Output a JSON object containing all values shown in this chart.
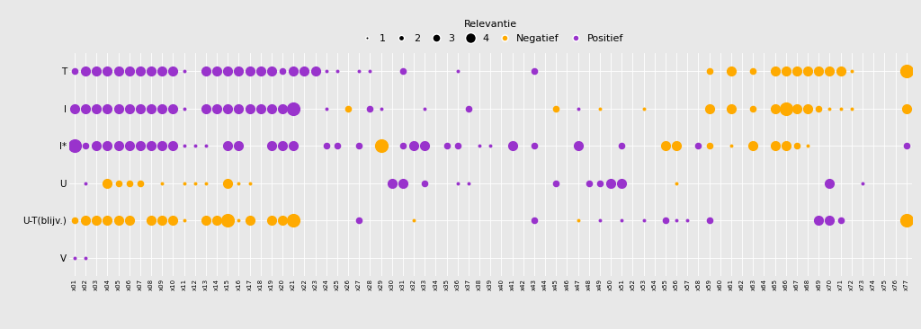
{
  "y_categories": [
    "T",
    "I",
    "I*",
    "U",
    "U-T(blijv.)",
    "V"
  ],
  "x_labels": [
    "x01",
    "x02",
    "x03",
    "x04",
    "x05",
    "x06",
    "x07",
    "x08",
    "x09",
    "x10",
    "x11",
    "x12",
    "x13",
    "x14",
    "x15",
    "x16",
    "x17",
    "x18",
    "x19",
    "x20",
    "x21",
    "x22",
    "x23",
    "x24",
    "x25",
    "x26",
    "x27",
    "x28",
    "x29",
    "x30",
    "x31",
    "x32",
    "x33",
    "x34",
    "x35",
    "x36",
    "x37",
    "x38",
    "x39",
    "x40",
    "x41",
    "x42",
    "x43",
    "x44",
    "x45",
    "x46",
    "x47",
    "x48",
    "x49",
    "x50",
    "x51",
    "x52",
    "x53",
    "x54",
    "x55",
    "x56",
    "x57",
    "x58",
    "x59",
    "x60",
    "x61",
    "x62",
    "x63",
    "x64",
    "x65",
    "x66",
    "x67",
    "x68",
    "x69",
    "x70",
    "x71",
    "x72",
    "x73",
    "x74",
    "x75",
    "x76",
    "x77"
  ],
  "purple": "#9933cc",
  "orange": "#ffaa00",
  "bg_color": "#e8e8e8",
  "grid_color": "#ffffff",
  "dots": [
    {
      "x": "x01",
      "y": "T",
      "color": "purple",
      "size": 2
    },
    {
      "x": "x02",
      "y": "T",
      "color": "purple",
      "size": 3
    },
    {
      "x": "x03",
      "y": "T",
      "color": "purple",
      "size": 3
    },
    {
      "x": "x04",
      "y": "T",
      "color": "purple",
      "size": 3
    },
    {
      "x": "x05",
      "y": "T",
      "color": "purple",
      "size": 3
    },
    {
      "x": "x06",
      "y": "T",
      "color": "purple",
      "size": 3
    },
    {
      "x": "x07",
      "y": "T",
      "color": "purple",
      "size": 3
    },
    {
      "x": "x08",
      "y": "T",
      "color": "purple",
      "size": 3
    },
    {
      "x": "x09",
      "y": "T",
      "color": "purple",
      "size": 3
    },
    {
      "x": "x10",
      "y": "T",
      "color": "purple",
      "size": 3
    },
    {
      "x": "x11",
      "y": "T",
      "color": "purple",
      "size": 1
    },
    {
      "x": "x13",
      "y": "T",
      "color": "purple",
      "size": 3
    },
    {
      "x": "x14",
      "y": "T",
      "color": "purple",
      "size": 3
    },
    {
      "x": "x15",
      "y": "T",
      "color": "purple",
      "size": 3
    },
    {
      "x": "x16",
      "y": "T",
      "color": "purple",
      "size": 3
    },
    {
      "x": "x17",
      "y": "T",
      "color": "purple",
      "size": 3
    },
    {
      "x": "x18",
      "y": "T",
      "color": "purple",
      "size": 3
    },
    {
      "x": "x19",
      "y": "T",
      "color": "purple",
      "size": 3
    },
    {
      "x": "x20",
      "y": "T",
      "color": "purple",
      "size": 2
    },
    {
      "x": "x21",
      "y": "T",
      "color": "purple",
      "size": 3
    },
    {
      "x": "x22",
      "y": "T",
      "color": "purple",
      "size": 3
    },
    {
      "x": "x23",
      "y": "T",
      "color": "purple",
      "size": 3
    },
    {
      "x": "x24",
      "y": "T",
      "color": "purple",
      "size": 1
    },
    {
      "x": "x25",
      "y": "T",
      "color": "purple",
      "size": 1
    },
    {
      "x": "x27",
      "y": "T",
      "color": "purple",
      "size": 1
    },
    {
      "x": "x28",
      "y": "T",
      "color": "purple",
      "size": 1
    },
    {
      "x": "x31",
      "y": "T",
      "color": "purple",
      "size": 2
    },
    {
      "x": "x36",
      "y": "T",
      "color": "purple",
      "size": 1
    },
    {
      "x": "x43",
      "y": "T",
      "color": "purple",
      "size": 2
    },
    {
      "x": "x59",
      "y": "T",
      "color": "orange",
      "size": 2
    },
    {
      "x": "x61",
      "y": "T",
      "color": "orange",
      "size": 3
    },
    {
      "x": "x63",
      "y": "T",
      "color": "orange",
      "size": 2
    },
    {
      "x": "x65",
      "y": "T",
      "color": "orange",
      "size": 3
    },
    {
      "x": "x66",
      "y": "T",
      "color": "orange",
      "size": 3
    },
    {
      "x": "x67",
      "y": "T",
      "color": "orange",
      "size": 3
    },
    {
      "x": "x68",
      "y": "T",
      "color": "orange",
      "size": 3
    },
    {
      "x": "x69",
      "y": "T",
      "color": "orange",
      "size": 3
    },
    {
      "x": "x70",
      "y": "T",
      "color": "orange",
      "size": 3
    },
    {
      "x": "x71",
      "y": "T",
      "color": "orange",
      "size": 3
    },
    {
      "x": "x72",
      "y": "T",
      "color": "orange",
      "size": 1
    },
    {
      "x": "x77",
      "y": "T",
      "color": "orange",
      "size": 4
    },
    {
      "x": "x01",
      "y": "I",
      "color": "purple",
      "size": 3
    },
    {
      "x": "x02",
      "y": "I",
      "color": "purple",
      "size": 3
    },
    {
      "x": "x03",
      "y": "I",
      "color": "purple",
      "size": 3
    },
    {
      "x": "x04",
      "y": "I",
      "color": "purple",
      "size": 3
    },
    {
      "x": "x05",
      "y": "I",
      "color": "purple",
      "size": 3
    },
    {
      "x": "x06",
      "y": "I",
      "color": "purple",
      "size": 3
    },
    {
      "x": "x07",
      "y": "I",
      "color": "purple",
      "size": 3
    },
    {
      "x": "x08",
      "y": "I",
      "color": "purple",
      "size": 3
    },
    {
      "x": "x09",
      "y": "I",
      "color": "purple",
      "size": 3
    },
    {
      "x": "x10",
      "y": "I",
      "color": "purple",
      "size": 3
    },
    {
      "x": "x11",
      "y": "I",
      "color": "purple",
      "size": 1
    },
    {
      "x": "x13",
      "y": "I",
      "color": "purple",
      "size": 3
    },
    {
      "x": "x14",
      "y": "I",
      "color": "purple",
      "size": 3
    },
    {
      "x": "x15",
      "y": "I",
      "color": "purple",
      "size": 3
    },
    {
      "x": "x16",
      "y": "I",
      "color": "purple",
      "size": 3
    },
    {
      "x": "x17",
      "y": "I",
      "color": "purple",
      "size": 3
    },
    {
      "x": "x18",
      "y": "I",
      "color": "purple",
      "size": 3
    },
    {
      "x": "x19",
      "y": "I",
      "color": "purple",
      "size": 3
    },
    {
      "x": "x20",
      "y": "I",
      "color": "purple",
      "size": 3
    },
    {
      "x": "x21",
      "y": "I",
      "color": "purple",
      "size": 4
    },
    {
      "x": "x24",
      "y": "I",
      "color": "purple",
      "size": 1
    },
    {
      "x": "x26",
      "y": "I",
      "color": "orange",
      "size": 2
    },
    {
      "x": "x28",
      "y": "I",
      "color": "purple",
      "size": 2
    },
    {
      "x": "x29",
      "y": "I",
      "color": "purple",
      "size": 1
    },
    {
      "x": "x33",
      "y": "I",
      "color": "purple",
      "size": 1
    },
    {
      "x": "x37",
      "y": "I",
      "color": "purple",
      "size": 2
    },
    {
      "x": "x45",
      "y": "I",
      "color": "orange",
      "size": 2
    },
    {
      "x": "x47",
      "y": "I",
      "color": "purple",
      "size": 1
    },
    {
      "x": "x49",
      "y": "I",
      "color": "orange",
      "size": 1
    },
    {
      "x": "x53",
      "y": "I",
      "color": "orange",
      "size": 1
    },
    {
      "x": "x59",
      "y": "I",
      "color": "orange",
      "size": 3
    },
    {
      "x": "x61",
      "y": "I",
      "color": "orange",
      "size": 3
    },
    {
      "x": "x63",
      "y": "I",
      "color": "orange",
      "size": 2
    },
    {
      "x": "x65",
      "y": "I",
      "color": "orange",
      "size": 3
    },
    {
      "x": "x66",
      "y": "I",
      "color": "orange",
      "size": 4
    },
    {
      "x": "x67",
      "y": "I",
      "color": "orange",
      "size": 3
    },
    {
      "x": "x68",
      "y": "I",
      "color": "orange",
      "size": 3
    },
    {
      "x": "x69",
      "y": "I",
      "color": "orange",
      "size": 2
    },
    {
      "x": "x70",
      "y": "I",
      "color": "orange",
      "size": 1
    },
    {
      "x": "x71",
      "y": "I",
      "color": "orange",
      "size": 1
    },
    {
      "x": "x72",
      "y": "I",
      "color": "orange",
      "size": 1
    },
    {
      "x": "x77",
      "y": "I",
      "color": "orange",
      "size": 3
    },
    {
      "x": "x01",
      "y": "I*",
      "color": "purple",
      "size": 4
    },
    {
      "x": "x02",
      "y": "I*",
      "color": "purple",
      "size": 2
    },
    {
      "x": "x03",
      "y": "I*",
      "color": "purple",
      "size": 3
    },
    {
      "x": "x04",
      "y": "I*",
      "color": "purple",
      "size": 3
    },
    {
      "x": "x05",
      "y": "I*",
      "color": "purple",
      "size": 3
    },
    {
      "x": "x06",
      "y": "I*",
      "color": "purple",
      "size": 3
    },
    {
      "x": "x07",
      "y": "I*",
      "color": "purple",
      "size": 3
    },
    {
      "x": "x08",
      "y": "I*",
      "color": "purple",
      "size": 3
    },
    {
      "x": "x09",
      "y": "I*",
      "color": "purple",
      "size": 3
    },
    {
      "x": "x10",
      "y": "I*",
      "color": "purple",
      "size": 3
    },
    {
      "x": "x11",
      "y": "I*",
      "color": "purple",
      "size": 1
    },
    {
      "x": "x12",
      "y": "I*",
      "color": "purple",
      "size": 1
    },
    {
      "x": "x13",
      "y": "I*",
      "color": "purple",
      "size": 1
    },
    {
      "x": "x15",
      "y": "I*",
      "color": "purple",
      "size": 3
    },
    {
      "x": "x16",
      "y": "I*",
      "color": "purple",
      "size": 3
    },
    {
      "x": "x19",
      "y": "I*",
      "color": "purple",
      "size": 3
    },
    {
      "x": "x20",
      "y": "I*",
      "color": "purple",
      "size": 3
    },
    {
      "x": "x21",
      "y": "I*",
      "color": "purple",
      "size": 3
    },
    {
      "x": "x24",
      "y": "I*",
      "color": "purple",
      "size": 2
    },
    {
      "x": "x25",
      "y": "I*",
      "color": "purple",
      "size": 2
    },
    {
      "x": "x27",
      "y": "I*",
      "color": "purple",
      "size": 2
    },
    {
      "x": "x29",
      "y": "I*",
      "color": "orange",
      "size": 4
    },
    {
      "x": "x31",
      "y": "I*",
      "color": "purple",
      "size": 2
    },
    {
      "x": "x32",
      "y": "I*",
      "color": "purple",
      "size": 3
    },
    {
      "x": "x33",
      "y": "I*",
      "color": "purple",
      "size": 3
    },
    {
      "x": "x35",
      "y": "I*",
      "color": "purple",
      "size": 2
    },
    {
      "x": "x36",
      "y": "I*",
      "color": "purple",
      "size": 2
    },
    {
      "x": "x38",
      "y": "I*",
      "color": "purple",
      "size": 1
    },
    {
      "x": "x39",
      "y": "I*",
      "color": "purple",
      "size": 1
    },
    {
      "x": "x41",
      "y": "I*",
      "color": "purple",
      "size": 3
    },
    {
      "x": "x43",
      "y": "I*",
      "color": "purple",
      "size": 2
    },
    {
      "x": "x47",
      "y": "I*",
      "color": "purple",
      "size": 3
    },
    {
      "x": "x51",
      "y": "I*",
      "color": "purple",
      "size": 2
    },
    {
      "x": "x55",
      "y": "I*",
      "color": "orange",
      "size": 3
    },
    {
      "x": "x56",
      "y": "I*",
      "color": "orange",
      "size": 3
    },
    {
      "x": "x58",
      "y": "I*",
      "color": "purple",
      "size": 2
    },
    {
      "x": "x59",
      "y": "I*",
      "color": "orange",
      "size": 2
    },
    {
      "x": "x61",
      "y": "I*",
      "color": "orange",
      "size": 1
    },
    {
      "x": "x63",
      "y": "I*",
      "color": "orange",
      "size": 3
    },
    {
      "x": "x65",
      "y": "I*",
      "color": "orange",
      "size": 3
    },
    {
      "x": "x66",
      "y": "I*",
      "color": "orange",
      "size": 3
    },
    {
      "x": "x67",
      "y": "I*",
      "color": "orange",
      "size": 2
    },
    {
      "x": "x68",
      "y": "I*",
      "color": "orange",
      "size": 1
    },
    {
      "x": "x77",
      "y": "I*",
      "color": "purple",
      "size": 2
    },
    {
      "x": "x02",
      "y": "U",
      "color": "purple",
      "size": 1
    },
    {
      "x": "x04",
      "y": "U",
      "color": "orange",
      "size": 3
    },
    {
      "x": "x05",
      "y": "U",
      "color": "orange",
      "size": 2
    },
    {
      "x": "x06",
      "y": "U",
      "color": "orange",
      "size": 2
    },
    {
      "x": "x07",
      "y": "U",
      "color": "orange",
      "size": 2
    },
    {
      "x": "x09",
      "y": "U",
      "color": "orange",
      "size": 1
    },
    {
      "x": "x11",
      "y": "U",
      "color": "orange",
      "size": 1
    },
    {
      "x": "x12",
      "y": "U",
      "color": "orange",
      "size": 1
    },
    {
      "x": "x13",
      "y": "U",
      "color": "orange",
      "size": 1
    },
    {
      "x": "x15",
      "y": "U",
      "color": "orange",
      "size": 3
    },
    {
      "x": "x16",
      "y": "U",
      "color": "orange",
      "size": 1
    },
    {
      "x": "x17",
      "y": "U",
      "color": "orange",
      "size": 1
    },
    {
      "x": "x30",
      "y": "U",
      "color": "purple",
      "size": 3
    },
    {
      "x": "x31",
      "y": "U",
      "color": "purple",
      "size": 3
    },
    {
      "x": "x33",
      "y": "U",
      "color": "purple",
      "size": 2
    },
    {
      "x": "x36",
      "y": "U",
      "color": "purple",
      "size": 1
    },
    {
      "x": "x37",
      "y": "U",
      "color": "purple",
      "size": 1
    },
    {
      "x": "x45",
      "y": "U",
      "color": "purple",
      "size": 2
    },
    {
      "x": "x48",
      "y": "U",
      "color": "purple",
      "size": 2
    },
    {
      "x": "x49",
      "y": "U",
      "color": "purple",
      "size": 2
    },
    {
      "x": "x50",
      "y": "U",
      "color": "purple",
      "size": 3
    },
    {
      "x": "x51",
      "y": "U",
      "color": "purple",
      "size": 3
    },
    {
      "x": "x56",
      "y": "U",
      "color": "orange",
      "size": 1
    },
    {
      "x": "x70",
      "y": "U",
      "color": "purple",
      "size": 3
    },
    {
      "x": "x73",
      "y": "U",
      "color": "purple",
      "size": 1
    },
    {
      "x": "x01",
      "y": "U-T(blijv.)",
      "color": "orange",
      "size": 2
    },
    {
      "x": "x02",
      "y": "U-T(blijv.)",
      "color": "orange",
      "size": 3
    },
    {
      "x": "x03",
      "y": "U-T(blijv.)",
      "color": "orange",
      "size": 3
    },
    {
      "x": "x04",
      "y": "U-T(blijv.)",
      "color": "orange",
      "size": 3
    },
    {
      "x": "x05",
      "y": "U-T(blijv.)",
      "color": "orange",
      "size": 3
    },
    {
      "x": "x06",
      "y": "U-T(blijv.)",
      "color": "orange",
      "size": 3
    },
    {
      "x": "x08",
      "y": "U-T(blijv.)",
      "color": "orange",
      "size": 3
    },
    {
      "x": "x09",
      "y": "U-T(blijv.)",
      "color": "orange",
      "size": 3
    },
    {
      "x": "x10",
      "y": "U-T(blijv.)",
      "color": "orange",
      "size": 3
    },
    {
      "x": "x11",
      "y": "U-T(blijv.)",
      "color": "orange",
      "size": 1
    },
    {
      "x": "x13",
      "y": "U-T(blijv.)",
      "color": "orange",
      "size": 3
    },
    {
      "x": "x14",
      "y": "U-T(blijv.)",
      "color": "orange",
      "size": 3
    },
    {
      "x": "x15",
      "y": "U-T(blijv.)",
      "color": "orange",
      "size": 4
    },
    {
      "x": "x16",
      "y": "U-T(blijv.)",
      "color": "orange",
      "size": 1
    },
    {
      "x": "x17",
      "y": "U-T(blijv.)",
      "color": "orange",
      "size": 3
    },
    {
      "x": "x19",
      "y": "U-T(blijv.)",
      "color": "orange",
      "size": 3
    },
    {
      "x": "x20",
      "y": "U-T(blijv.)",
      "color": "orange",
      "size": 3
    },
    {
      "x": "x21",
      "y": "U-T(blijv.)",
      "color": "orange",
      "size": 4
    },
    {
      "x": "x27",
      "y": "U-T(blijv.)",
      "color": "purple",
      "size": 2
    },
    {
      "x": "x32",
      "y": "U-T(blijv.)",
      "color": "orange",
      "size": 1
    },
    {
      "x": "x43",
      "y": "U-T(blijv.)",
      "color": "purple",
      "size": 2
    },
    {
      "x": "x47",
      "y": "U-T(blijv.)",
      "color": "orange",
      "size": 1
    },
    {
      "x": "x49",
      "y": "U-T(blijv.)",
      "color": "purple",
      "size": 1
    },
    {
      "x": "x51",
      "y": "U-T(blijv.)",
      "color": "purple",
      "size": 1
    },
    {
      "x": "x53",
      "y": "U-T(blijv.)",
      "color": "purple",
      "size": 1
    },
    {
      "x": "x55",
      "y": "U-T(blijv.)",
      "color": "purple",
      "size": 2
    },
    {
      "x": "x56",
      "y": "U-T(blijv.)",
      "color": "purple",
      "size": 1
    },
    {
      "x": "x57",
      "y": "U-T(blijv.)",
      "color": "purple",
      "size": 1
    },
    {
      "x": "x59",
      "y": "U-T(blijv.)",
      "color": "purple",
      "size": 2
    },
    {
      "x": "x69",
      "y": "U-T(blijv.)",
      "color": "purple",
      "size": 3
    },
    {
      "x": "x70",
      "y": "U-T(blijv.)",
      "color": "purple",
      "size": 3
    },
    {
      "x": "x71",
      "y": "U-T(blijv.)",
      "color": "purple",
      "size": 2
    },
    {
      "x": "x77",
      "y": "U-T(blijv.)",
      "color": "orange",
      "size": 4
    },
    {
      "x": "x01",
      "y": "V",
      "color": "purple",
      "size": 1
    },
    {
      "x": "x02",
      "y": "V",
      "color": "purple",
      "size": 1
    }
  ]
}
